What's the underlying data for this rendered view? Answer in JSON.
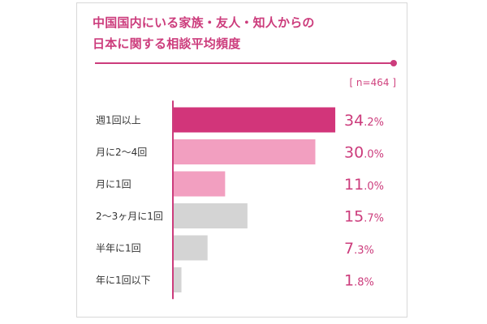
{
  "chart_data": {
    "type": "bar",
    "orientation": "horizontal",
    "title_lines": [
      "中国国内にいる家族・友人・知人からの",
      "日本に関する相談平均頻度"
    ],
    "note": "[ n=464 ]",
    "categories": [
      "週1回以上",
      "月に2〜4回",
      "月に1回",
      "2〜3ヶ月に1回",
      "半年に1回",
      "年に1回以下"
    ],
    "values": [
      34.2,
      30.0,
      11.0,
      15.7,
      7.3,
      1.8
    ],
    "value_labels": [
      {
        "int": "34",
        "dec": ".2%"
      },
      {
        "int": "30",
        "dec": ".0%"
      },
      {
        "int": "11",
        "dec": ".0%"
      },
      {
        "int": "15",
        "dec": ".7%"
      },
      {
        "int": "7",
        "dec": ".3%"
      },
      {
        "int": "1",
        "dec": ".8%"
      }
    ],
    "unit": "%",
    "legend": "none",
    "grid": false
  },
  "colors": {
    "accent": "#cc3c7c",
    "bar_highlight": "#d2357a",
    "bar_pink": "#f29fc0",
    "bar_gray": "#d4d4d4",
    "axis": "#cc3c7c",
    "label_text": "#333333"
  },
  "bar_color_keys": [
    "bar_highlight",
    "bar_pink",
    "bar_pink",
    "bar_gray",
    "bar_gray",
    "bar_gray"
  ]
}
